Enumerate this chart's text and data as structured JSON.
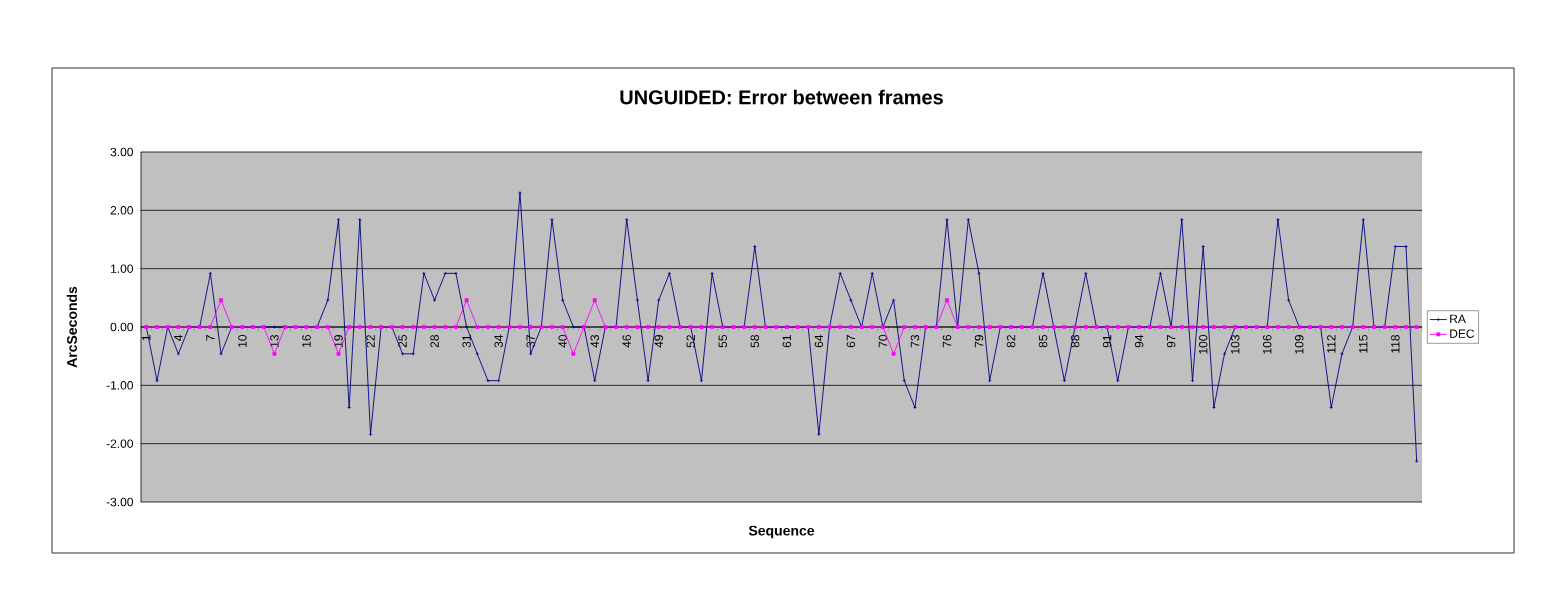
{
  "chart_data": {
    "type": "line",
    "title": "UNGUIDED: Error between frames",
    "xlabel": "Sequence",
    "ylabel": "ArcSeconds",
    "categories": [
      "1",
      null,
      null,
      "4",
      null,
      null,
      "7",
      null,
      null,
      "10",
      null,
      null,
      "13",
      null,
      null,
      "16",
      null,
      null,
      "19",
      null,
      null,
      "22",
      null,
      null,
      "25",
      null,
      null,
      "28",
      null,
      null,
      "31",
      null,
      null,
      "34",
      null,
      null,
      "37",
      null,
      null,
      "40",
      null,
      null,
      "43",
      null,
      null,
      "46",
      null,
      null,
      "49",
      null,
      null,
      "52",
      null,
      null,
      "55",
      null,
      null,
      "58",
      null,
      null,
      "61",
      null,
      null,
      "64",
      null,
      null,
      "67",
      null,
      null,
      "70",
      null,
      null,
      "73",
      null,
      null,
      "76",
      null,
      null,
      "79",
      null,
      null,
      "82",
      null,
      null,
      "85",
      null,
      null,
      "88",
      null,
      null,
      "91",
      null,
      null,
      "94",
      null,
      null,
      "97",
      null,
      null,
      "100",
      null,
      null,
      "103",
      null,
      null,
      "106",
      null,
      null,
      "109",
      null,
      null,
      "112",
      null,
      null,
      "115",
      null,
      null,
      "118",
      null,
      null
    ],
    "series": [
      {
        "name": "RA",
        "color": "#000080",
        "marker": "cross",
        "values": [
          0,
          -0.92,
          0,
          -0.46,
          0,
          0,
          0.92,
          -0.46,
          0,
          0,
          0,
          0,
          0,
          0,
          0,
          0,
          0,
          0.46,
          1.84,
          -1.38,
          1.84,
          -1.84,
          0,
          0,
          -0.46,
          -0.46,
          0.92,
          0.46,
          0.92,
          0.92,
          0,
          -0.46,
          -0.92,
          -0.92,
          0,
          2.3,
          -0.46,
          0,
          1.84,
          0.46,
          0,
          0,
          -0.92,
          0,
          0,
          1.84,
          0.46,
          -0.92,
          0.46,
          0.92,
          0,
          0,
          -0.92,
          0.92,
          0,
          0,
          0,
          1.38,
          0,
          0,
          0,
          0,
          0,
          -1.84,
          0,
          0.92,
          0.46,
          0,
          0.92,
          0,
          0.46,
          -0.92,
          -1.38,
          0,
          0,
          1.84,
          0,
          1.84,
          0.92,
          -0.92,
          0,
          0,
          0,
          0,
          0.92,
          0,
          -0.92,
          0,
          0.92,
          0,
          0,
          -0.92,
          0,
          0,
          0,
          0.92,
          0,
          1.84,
          -0.92,
          1.38,
          -1.38,
          -0.46,
          0,
          0,
          0,
          0,
          1.84,
          0.46,
          0,
          0,
          0,
          -1.38,
          -0.46,
          0,
          1.84,
          0,
          0,
          1.38,
          1.38,
          -2.3
        ]
      },
      {
        "name": "DEC",
        "color": "#ff00ff",
        "marker": "square",
        "values": [
          0,
          0,
          0,
          0,
          0,
          0,
          0,
          0.46,
          0,
          0,
          0,
          0,
          -0.46,
          0,
          0,
          0,
          0,
          0,
          -0.46,
          0,
          0,
          0,
          0,
          0,
          0,
          0,
          0,
          0,
          0,
          0,
          0.46,
          0,
          0,
          0,
          0,
          0,
          0,
          0,
          0,
          0,
          -0.46,
          0,
          0.46,
          0,
          0,
          0,
          0,
          0,
          0,
          0,
          0,
          0,
          0,
          0,
          0,
          0,
          0,
          0,
          0,
          0,
          0,
          0,
          0,
          0,
          0,
          0,
          0,
          0,
          0,
          0,
          -0.46,
          0,
          0,
          0,
          0,
          0.46,
          0,
          0,
          0,
          0,
          0,
          0,
          0,
          0,
          0,
          0,
          0,
          0,
          0,
          0,
          0,
          0,
          0,
          0,
          0,
          0,
          0,
          0,
          0,
          0,
          0,
          0,
          0,
          0,
          0,
          0,
          0,
          0,
          0,
          0,
          0,
          0,
          0,
          0,
          0,
          0,
          0,
          0,
          0,
          0
        ]
      }
    ],
    "ylim": [
      -3,
      3
    ],
    "yticks": [
      {
        "value": -3,
        "label": "-3.00"
      },
      {
        "value": -2,
        "label": "-2.00"
      },
      {
        "value": -1,
        "label": "-1.00"
      },
      {
        "value": 0,
        "label": "0.00"
      },
      {
        "value": 1,
        "label": "1.00"
      },
      {
        "value": 2,
        "label": "2.00"
      },
      {
        "value": 3,
        "label": "3.00"
      }
    ],
    "grid": "y",
    "legend": "right"
  }
}
